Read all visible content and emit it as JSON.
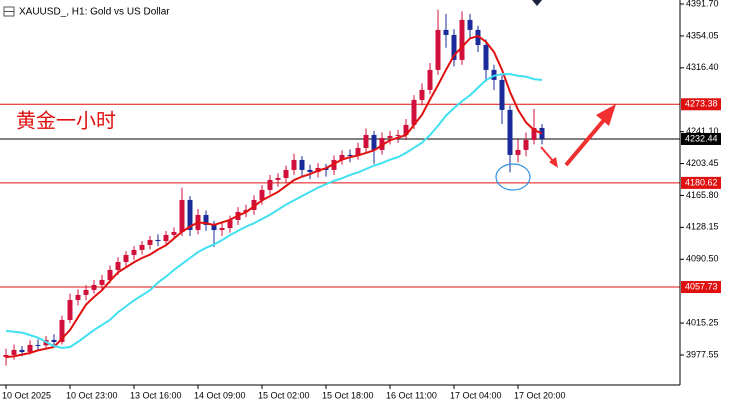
{
  "chart_data": {
    "type": "candlestick",
    "title": "XAUUSD_, H1:  Gold vs US Dollar",
    "annotation": "黄金一小时",
    "categories": [
      "10 Oct 2025",
      null,
      null,
      null,
      null,
      null,
      null,
      null,
      "10 Oct 23:00",
      null,
      null,
      null,
      null,
      null,
      null,
      null,
      "13 Oct 16:00",
      null,
      null,
      null,
      null,
      null,
      null,
      null,
      "14 Oct 09:00",
      null,
      null,
      null,
      null,
      null,
      null,
      null,
      "15 Oct 02:00",
      null,
      null,
      null,
      null,
      null,
      null,
      null,
      "15 Oct 18:00",
      null,
      null,
      null,
      null,
      null,
      null,
      null,
      "16 Oct 11:00",
      null,
      null,
      null,
      null,
      null,
      null,
      null,
      "17 Oct 04:00",
      null,
      null,
      null,
      null,
      null,
      null,
      null,
      "17 Oct 20:00",
      null,
      null,
      null
    ],
    "open": [
      3975.0,
      3977.6,
      3983.5,
      3981.1,
      3989.4,
      3989.0,
      3995.3,
      3992.9,
      4018.9,
      4042.5,
      4048.4,
      4054.3,
      4060.2,
      4066.1,
      4077.9,
      4087.3,
      4095.6,
      4101.5,
      4107.4,
      4113.3,
      4112.0,
      4119.2,
      4122.7,
      4160.5,
      4125.1,
      4142.8,
      4131.0,
      4125.0,
      4127.4,
      4136.9,
      4146.3,
      4148.7,
      4160.5,
      4172.3,
      4184.1,
      4186.4,
      4195.9,
      4207.7,
      4195.9,
      4193.5,
      4198.2,
      4195.9,
      4207.7,
      4213.6,
      4213.0,
      4221.8,
      4237.2,
      4219.5,
      4233.6,
      4236.0,
      4237.2,
      4249.0,
      4278.5,
      4290.3,
      4313.9,
      4361.1,
      4355.2,
      4325.7,
      4372.9,
      4361.1,
      4343.3,
      4313.9,
      4302.1,
      4266.7,
      4213.6,
      4219.5,
      4231.3,
      4245.4
    ],
    "high": [
      3985.0,
      3990.0,
      3988.0,
      3995.0,
      3996.0,
      4000.0,
      4002.0,
      4024.0,
      4050.0,
      4055.0,
      4060.0,
      4066.0,
      4072.0,
      4083.0,
      4093.0,
      4100.0,
      4106.0,
      4112.0,
      4118.0,
      4120.0,
      4124.0,
      4128.0,
      4175.0,
      4165.0,
      4150.0,
      4148.0,
      4136.0,
      4133.0,
      4142.0,
      4152.0,
      4155.0,
      4166.0,
      4178.0,
      4190.0,
      4192.0,
      4201.0,
      4215.0,
      4212.0,
      4202.0,
      4204.0,
      4203.0,
      4213.0,
      4219.0,
      4220.0,
      4228.0,
      4245.0,
      4242.0,
      4240.0,
      4242.0,
      4243.0,
      4256.0,
      4284.0,
      4298.0,
      4322.0,
      4385.0,
      4380.0,
      4362.0,
      4383.0,
      4380.0,
      4366.0,
      4350.0,
      4320.0,
      4308.0,
      4272.0,
      4232.0,
      4240.0,
      4268.0,
      4250.0
    ],
    "low": [
      3965.0,
      3972.0,
      3976.0,
      3978.0,
      3984.0,
      3985.0,
      3986.0,
      3990.0,
      4015.0,
      4036.0,
      4042.0,
      4050.0,
      4055.0,
      4062.0,
      4072.0,
      4082.0,
      4090.0,
      4096.0,
      4102.0,
      4106.0,
      4108.0,
      4114.0,
      4118.0,
      4118.0,
      4120.0,
      4124.0,
      4105.0,
      4118.0,
      4122.0,
      4131.0,
      4140.0,
      4143.0,
      4155.0,
      4167.0,
      4176.0,
      4180.0,
      4190.0,
      4188.0,
      4185.0,
      4187.0,
      4188.0,
      4190.0,
      4202.0,
      4205.0,
      4208.0,
      4216.0,
      4203.0,
      4214.0,
      4226.0,
      4228.0,
      4231.0,
      4244.0,
      4272.0,
      4285.0,
      4308.0,
      4340.0,
      4318.0,
      4320.0,
      4352.0,
      4335.0,
      4300.0,
      4290.0,
      4250.0,
      4193.0,
      4205.0,
      4212.0,
      4226.0,
      4226.0
    ],
    "close": [
      3977.6,
      3983.5,
      3981.1,
      3989.4,
      3989.0,
      3995.3,
      3992.9,
      4018.9,
      4042.5,
      4048.4,
      4054.3,
      4060.2,
      4066.1,
      4077.9,
      4087.3,
      4095.6,
      4101.5,
      4107.4,
      4113.3,
      4112.0,
      4119.2,
      4122.7,
      4160.5,
      4125.1,
      4142.8,
      4131.0,
      4125.0,
      4127.4,
      4136.9,
      4146.3,
      4148.7,
      4160.5,
      4172.3,
      4184.1,
      4186.4,
      4195.9,
      4207.7,
      4195.9,
      4193.5,
      4198.2,
      4195.9,
      4207.7,
      4213.6,
      4213.0,
      4221.8,
      4237.2,
      4219.5,
      4233.6,
      4236.0,
      4237.2,
      4249.0,
      4278.5,
      4290.3,
      4313.9,
      4361.1,
      4355.2,
      4325.7,
      4372.9,
      4361.1,
      4343.3,
      4313.9,
      4302.1,
      4266.7,
      4213.6,
      4219.5,
      4231.3,
      4245.4,
      4232.44
    ],
    "up_color": "#d0103a",
    "down_color": "#1a2a9a",
    "lines": [
      {
        "color": "#e01010",
        "values": [
          3975,
          3976,
          3978,
          3980,
          3983,
          3985,
          3987,
          3997,
          4007,
          4022,
          4037,
          4046,
          4054,
          4065,
          4075,
          4081,
          4087,
          4092,
          4096,
          4102,
          4107,
          4115,
          4123,
          4129,
          4134,
          4133,
          4131,
          4134,
          4137,
          4142,
          4146,
          4153,
          4160,
          4165,
          4170,
          4177,
          4184,
          4188,
          4191,
          4195,
          4198,
          4203,
          4208,
          4211,
          4213,
          4216,
          4219,
          4225,
          4231,
          4234,
          4237,
          4249,
          4261,
          4279,
          4296,
          4314,
          4331,
          4341,
          4351,
          4354,
          4347,
          4335,
          4314,
          4288,
          4267,
          4252,
          4243,
          4239
        ]
      },
      {
        "color": "#40e0f0",
        "values": [
          4006,
          4005,
          4004,
          4001,
          3998,
          3993,
          3988,
          3986,
          3987,
          3993,
          4000,
          4007,
          4013,
          4019,
          4028,
          4035,
          4042,
          4048,
          4054,
          4063,
          4070,
          4078,
          4085,
          4092,
          4099,
          4104,
          4108,
          4113,
          4119,
          4124,
          4129,
          4133,
          4138,
          4143,
          4149,
          4155,
          4160,
          4165,
          4170,
          4175,
          4179,
          4183,
          4186,
          4190,
          4193,
          4197,
          4201,
          4204,
          4208,
          4211,
          4216,
          4222,
          4228,
          4237,
          4248,
          4260,
          4269,
          4277,
          4284,
          4293,
          4302,
          4307,
          4309,
          4309,
          4307,
          4306,
          4303,
          4302
        ]
      }
    ],
    "hlines": [
      {
        "value": 4273.38,
        "color": "#e01010"
      },
      {
        "value": 4180.62,
        "color": "#e01010"
      },
      {
        "value": 4057.73,
        "color": "#e01010"
      }
    ],
    "bid_color": "#000000",
    "ylim": [
      3942.15,
      4396.4
    ],
    "yticks": [
      3977.55,
      4015.25,
      {
        "value": 4090.5,
        "label": "4090.50"
      },
      4128.15,
      {
        "value": 4165.8,
        "label": "4165.80"
      },
      4203.45,
      {
        "value": 4241.1,
        "label": "4241.10"
      },
      {
        "value": 4316.4,
        "label": "4316.40"
      },
      4354.05,
      {
        "value": 4391.7,
        "label": "4391.70"
      }
    ]
  }
}
